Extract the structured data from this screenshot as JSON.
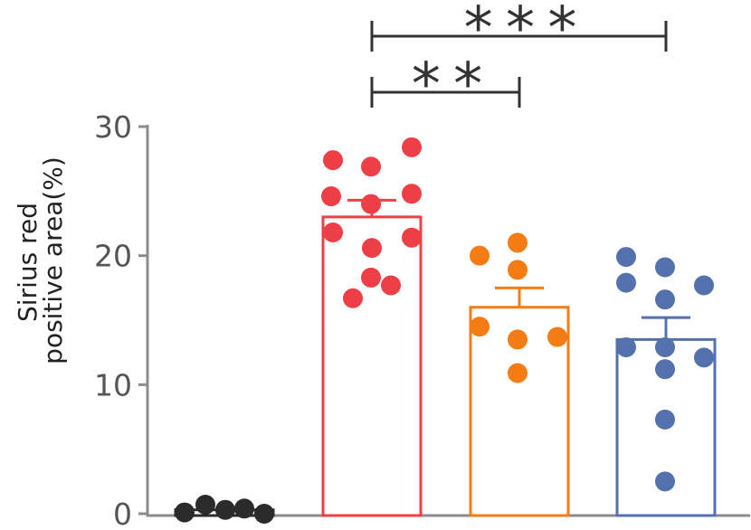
{
  "chart_data": {
    "type": "bar",
    "title": "",
    "xlabel": "",
    "ylabel": [
      "Sirius red",
      "positive area(%)"
    ],
    "ylim": [
      0,
      30
    ],
    "yticks": [
      0,
      10,
      20,
      30
    ],
    "grid": false,
    "legend": "none",
    "groups": [
      {
        "color": "#2b2b2b",
        "mean": 0.3,
        "error": null,
        "points": [
          0.1,
          0.7,
          0.3,
          0.4,
          0.0
        ]
      },
      {
        "color": "#ef3f46",
        "mean": 23.0,
        "error": 1.3,
        "points": [
          27.4,
          26.9,
          28.4,
          24.6,
          24.0,
          24.8,
          21.8,
          20.6,
          21.4,
          18.3,
          16.7,
          17.7
        ]
      },
      {
        "color": "#f47c14",
        "mean": 16.0,
        "error": 1.5,
        "points": [
          20.0,
          21.0,
          18.9,
          14.5,
          13.5,
          13.7,
          10.9
        ]
      },
      {
        "color": "#5372ad",
        "mean": 13.5,
        "error": 1.7,
        "points": [
          19.9,
          19.1,
          17.9,
          16.6,
          17.7,
          12.9,
          12.9,
          12.1,
          11.2,
          7.3,
          2.5
        ]
      }
    ],
    "significance": [
      {
        "from": 1,
        "to": 2,
        "label": "* *"
      },
      {
        "from": 1,
        "to": 3,
        "label": "* * *"
      }
    ]
  },
  "colors": {
    "axis": "#8c8c8c",
    "tick_label": "#555555",
    "ylabel": "#222222",
    "annotation": "#333333"
  }
}
